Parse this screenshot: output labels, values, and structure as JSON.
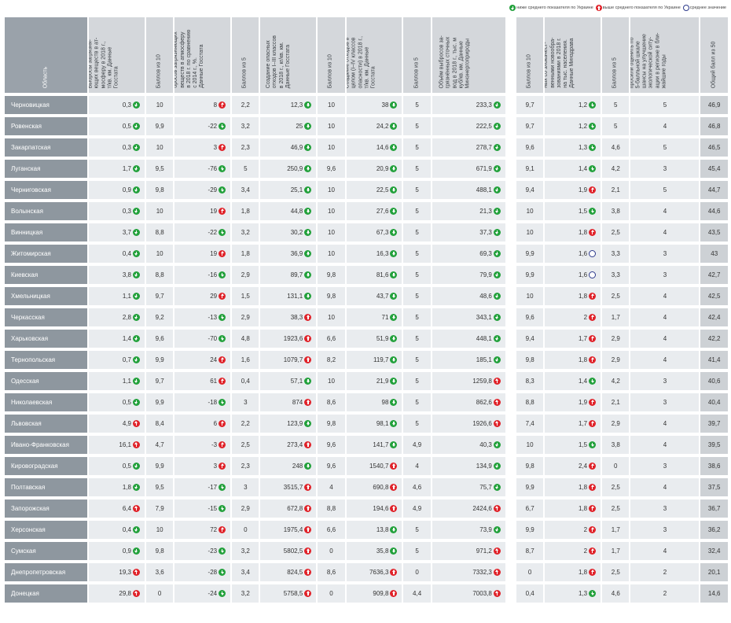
{
  "legend": {
    "below": "ниже среднего показателя по Украине",
    "above": "выше среднего показателя по Украине",
    "average": "среднее значение"
  },
  "headers": {
    "region": "Область",
    "c1": "Выбросы загрязня-\nющих веществ в ат-\nмосферу в 2018 г.,\nт/кв. км. Данные\nГосстата",
    "c2": "Баллов из 10",
    "c3": "Рост/снижение вы-\nбросов загрязняющих\nвеществ в атмосферу\nв 2018 г. по сравнению\nс 2014 г., %.\nДанные Госстата",
    "c4": "Баллов из 5",
    "c5": "Создание опасных\nотходов I–III классов\nв 2018 г., кг/кв. км.\nДанные Госстата",
    "c6": "Баллов из 10",
    "c7": "Создание отходов в\nцелом (I–IV классов\nопасности) в 2018 г.,\nт/кв. км. Данные\nГосстата",
    "c8": "Баллов из 5",
    "c9": "Объём выбросов за-\nгрязнённых сточных\nвод в 2018 г., тыс. м\nкуб/кв. км. Данные\nМинэнергоприроды",
    "c10": "Баллов из 10",
    "c11": "Численность боль-\nных со злокачест-\nвенными новообра-\nзованиями в 2018 г.\nна тыс. населения.\nДанные Минздрава",
    "c12": "Баллов из 5",
    "c13": "Результаты опроса,\nв котором экологов\nпросили оценить по\n5-балльной шкале\nшансы на улучшение\nэкологической ситу-\nации в регионе в бли-\nжайшие годы",
    "c14": "Общий балл из 50"
  },
  "rows": [
    {
      "name": "Черновицкая",
      "v1": "0,3",
      "i1": "dn",
      "s1": "10",
      "v2": "8",
      "i2": "up",
      "s2": "2,2",
      "v3": "12,3",
      "i3": "dn",
      "s3": "10",
      "v4": "38",
      "i4": "dn",
      "s4": "5",
      "v5": "233,3",
      "i5": "dn",
      "s5": "9,7",
      "v6": "1,2",
      "i6": "dn",
      "s6": "5",
      "s7": "5",
      "total": "46,9"
    },
    {
      "name": "Ровенская",
      "v1": "0,5",
      "i1": "dn",
      "s1": "9,9",
      "v2": "-22",
      "i2": "dn",
      "s2": "3,2",
      "v3": "25",
      "i3": "dn",
      "s3": "10",
      "v4": "24,2",
      "i4": "dn",
      "s4": "5",
      "v5": "222,5",
      "i5": "dn",
      "s5": "9,7",
      "v6": "1,2",
      "i6": "dn",
      "s6": "5",
      "s7": "4",
      "total": "46,8"
    },
    {
      "name": "Закарпатская",
      "v1": "0,3",
      "i1": "dn",
      "s1": "10",
      "v2": "3",
      "i2": "up",
      "s2": "2,3",
      "v3": "46,9",
      "i3": "dn",
      "s3": "10",
      "v4": "14,6",
      "i4": "dn",
      "s4": "5",
      "v5": "278,7",
      "i5": "dn",
      "s5": "9,6",
      "v6": "1,3",
      "i6": "dn",
      "s6": "4,6",
      "s7": "5",
      "total": "46,5"
    },
    {
      "name": "Луганская",
      "v1": "1,7",
      "i1": "dn",
      "s1": "9,5",
      "v2": "-76",
      "i2": "dn",
      "s2": "5",
      "v3": "250,9",
      "i3": "dn",
      "s3": "9,6",
      "v4": "20,9",
      "i4": "dn",
      "s4": "5",
      "v5": "671,9",
      "i5": "dn",
      "s5": "9,1",
      "v6": "1,4",
      "i6": "dn",
      "s6": "4,2",
      "s7": "3",
      "total": "45,4"
    },
    {
      "name": "Черниговская",
      "v1": "0,9",
      "i1": "dn",
      "s1": "9,8",
      "v2": "-29",
      "i2": "dn",
      "s2": "3,4",
      "v3": "25,1",
      "i3": "dn",
      "s3": "10",
      "v4": "22,5",
      "i4": "dn",
      "s4": "5",
      "v5": "488,1",
      "i5": "dn",
      "s5": "9,4",
      "v6": "1,9",
      "i6": "up",
      "s6": "2,1",
      "s7": "5",
      "total": "44,7"
    },
    {
      "name": "Волынская",
      "v1": "0,3",
      "i1": "dn",
      "s1": "10",
      "v2": "19",
      "i2": "up",
      "s2": "1,8",
      "v3": "44,8",
      "i3": "dn",
      "s3": "10",
      "v4": "27,6",
      "i4": "dn",
      "s4": "5",
      "v5": "21,3",
      "i5": "dn",
      "s5": "10",
      "v6": "1,5",
      "i6": "dn",
      "s6": "3,8",
      "s7": "4",
      "total": "44,6"
    },
    {
      "name": "Винницкая",
      "v1": "3,7",
      "i1": "dn",
      "s1": "8,8",
      "v2": "-22",
      "i2": "dn",
      "s2": "3,2",
      "v3": "30,2",
      "i3": "dn",
      "s3": "10",
      "v4": "67,3",
      "i4": "dn",
      "s4": "5",
      "v5": "37,3",
      "i5": "dn",
      "s5": "10",
      "v6": "1,8",
      "i6": "up",
      "s6": "2,5",
      "s7": "4",
      "total": "43,5"
    },
    {
      "name": "Житомирская",
      "v1": "0,4",
      "i1": "dn",
      "s1": "10",
      "v2": "19",
      "i2": "up",
      "s2": "1,8",
      "v3": "36,9",
      "i3": "dn",
      "s3": "10",
      "v4": "16,3",
      "i4": "dn",
      "s4": "5",
      "v5": "69,3",
      "i5": "dn",
      "s5": "9,9",
      "v6": "1,6",
      "i6": "av",
      "s6": "3,3",
      "s7": "3",
      "total": "43"
    },
    {
      "name": "Киевская",
      "v1": "3,8",
      "i1": "dn",
      "s1": "8,8",
      "v2": "-16",
      "i2": "dn",
      "s2": "2,9",
      "v3": "89,7",
      "i3": "dn",
      "s3": "9,8",
      "v4": "81,6",
      "i4": "dn",
      "s4": "5",
      "v5": "79,9",
      "i5": "dn",
      "s5": "9,9",
      "v6": "1,6",
      "i6": "av",
      "s6": "3,3",
      "s7": "3",
      "total": "42,7"
    },
    {
      "name": "Хмельницкая",
      "v1": "1,1",
      "i1": "dn",
      "s1": "9,7",
      "v2": "29",
      "i2": "up",
      "s2": "1,5",
      "v3": "131,1",
      "i3": "dn",
      "s3": "9,8",
      "v4": "43,7",
      "i4": "dn",
      "s4": "5",
      "v5": "48,6",
      "i5": "dn",
      "s5": "10",
      "v6": "1,8",
      "i6": "up",
      "s6": "2,5",
      "s7": "4",
      "total": "42,5"
    },
    {
      "name": "Черкасская",
      "v1": "2,8",
      "i1": "dn",
      "s1": "9,2",
      "v2": "-13",
      "i2": "dn",
      "s2": "2,9",
      "v3": "38,3",
      "i3": "up",
      "s3": "10",
      "v4": "71",
      "i4": "dn",
      "s4": "5",
      "v5": "343,1",
      "i5": "dn",
      "s5": "9,6",
      "v6": "2",
      "i6": "up",
      "s6": "1,7",
      "s7": "4",
      "total": "42,4"
    },
    {
      "name": "Харьковская",
      "v1": "1,4",
      "i1": "dn",
      "s1": "9,6",
      "v2": "-70",
      "i2": "dn",
      "s2": "4,8",
      "v3": "1923,6",
      "i3": "up",
      "s3": "6,6",
      "v4": "51,9",
      "i4": "dn",
      "s4": "5",
      "v5": "448,1",
      "i5": "dn",
      "s5": "9,4",
      "v6": "1,7",
      "i6": "up",
      "s6": "2,9",
      "s7": "4",
      "total": "42,2"
    },
    {
      "name": "Тернопольская",
      "v1": "0,7",
      "i1": "dn",
      "s1": "9,9",
      "v2": "24",
      "i2": "up",
      "s2": "1,6",
      "v3": "1079,7",
      "i3": "up",
      "s3": "8,2",
      "v4": "119,7",
      "i4": "dn",
      "s4": "5",
      "v5": "185,1",
      "i5": "dn",
      "s5": "9,8",
      "v6": "1,8",
      "i6": "up",
      "s6": "2,9",
      "s7": "4",
      "total": "41,4"
    },
    {
      "name": "Одесская",
      "v1": "1,1",
      "i1": "dn",
      "s1": "9,7",
      "v2": "61",
      "i2": "up",
      "s2": "0,4",
      "v3": "57,1",
      "i3": "dn",
      "s3": "10",
      "v4": "21,9",
      "i4": "dn",
      "s4": "5",
      "v5": "1259,8",
      "i5": "up",
      "s5": "8,3",
      "v6": "1,4",
      "i6": "dn",
      "s6": "4,2",
      "s7": "3",
      "total": "40,6"
    },
    {
      "name": "Николаевская",
      "v1": "0,5",
      "i1": "dn",
      "s1": "9,9",
      "v2": "-18",
      "i2": "dn",
      "s2": "3",
      "v3": "874",
      "i3": "up",
      "s3": "8,6",
      "v4": "98",
      "i4": "dn",
      "s4": "5",
      "v5": "862,6",
      "i5": "up",
      "s5": "8,8",
      "v6": "1,9",
      "i6": "up",
      "s6": "2,1",
      "s7": "3",
      "total": "40,4"
    },
    {
      "name": "Львовская",
      "v1": "4,9",
      "i1": "up",
      "s1": "8,4",
      "v2": "6",
      "i2": "up",
      "s2": "2,2",
      "v3": "123,9",
      "i3": "dn",
      "s3": "9,8",
      "v4": "98,1",
      "i4": "dn",
      "s4": "5",
      "v5": "1926,6",
      "i5": "up",
      "s5": "7,4",
      "v6": "1,7",
      "i6": "up",
      "s6": "2,9",
      "s7": "4",
      "total": "39,7"
    },
    {
      "name": "Ивано-Франковская",
      "v1": "16,1",
      "i1": "up",
      "s1": "4,7",
      "v2": "-3",
      "i2": "up",
      "s2": "2,5",
      "v3": "273,4",
      "i3": "up",
      "s3": "9,6",
      "v4": "141,7",
      "i4": "dn",
      "s4": "4,9",
      "v5": "40,3",
      "i5": "dn",
      "s5": "10",
      "v6": "1,5",
      "i6": "dn",
      "s6": "3,8",
      "s7": "4",
      "total": "39,5"
    },
    {
      "name": "Кировоградская",
      "v1": "0,5",
      "i1": "dn",
      "s1": "9,9",
      "v2": "3",
      "i2": "up",
      "s2": "2,3",
      "v3": "248",
      "i3": "dn",
      "s3": "9,6",
      "v4": "1540,7",
      "i4": "up",
      "s4": "4",
      "v5": "134,9",
      "i5": "dn",
      "s5": "9,8",
      "v6": "2,4",
      "i6": "up",
      "s6": "0",
      "s7": "3",
      "total": "38,6"
    },
    {
      "name": "Полтавская",
      "v1": "1,8",
      "i1": "dn",
      "s1": "9,5",
      "v2": "-17",
      "i2": "dn",
      "s2": "3",
      "v3": "3515,7",
      "i3": "up",
      "s3": "4",
      "v4": "690,8",
      "i4": "up",
      "s4": "4,6",
      "v5": "75,7",
      "i5": "dn",
      "s5": "9,9",
      "v6": "1,8",
      "i6": "up",
      "s6": "2,5",
      "s7": "4",
      "total": "37,5"
    },
    {
      "name": "Запорожская",
      "v1": "6,4",
      "i1": "up",
      "s1": "7,9",
      "v2": "-15",
      "i2": "dn",
      "s2": "2,9",
      "v3": "672,8",
      "i3": "up",
      "s3": "8,8",
      "v4": "194,6",
      "i4": "up",
      "s4": "4,9",
      "v5": "2424,6",
      "i5": "up",
      "s5": "6,7",
      "v6": "1,8",
      "i6": "up",
      "s6": "2,5",
      "s7": "3",
      "total": "36,7"
    },
    {
      "name": "Херсонская",
      "v1": "0,4",
      "i1": "dn",
      "s1": "10",
      "v2": "72",
      "i2": "up",
      "s2": "0",
      "v3": "1975,4",
      "i3": "up",
      "s3": "6,6",
      "v4": "13,8",
      "i4": "dn",
      "s4": "5",
      "v5": "73,9",
      "i5": "dn",
      "s5": "9,9",
      "v6": "2",
      "i6": "up",
      "s6": "1,7",
      "s7": "3",
      "total": "36,2"
    },
    {
      "name": "Сумская",
      "v1": "0,9",
      "i1": "dn",
      "s1": "9,8",
      "v2": "-23",
      "i2": "dn",
      "s2": "3,2",
      "v3": "5802,5",
      "i3": "up",
      "s3": "0",
      "v4": "35,8",
      "i4": "dn",
      "s4": "5",
      "v5": "971,2",
      "i5": "up",
      "s5": "8,7",
      "v6": "2",
      "i6": "up",
      "s6": "1,7",
      "s7": "4",
      "total": "32,4"
    },
    {
      "name": "Днепропетровская",
      "v1": "19,3",
      "i1": "up",
      "s1": "3,6",
      "v2": "-28",
      "i2": "dn",
      "s2": "3,4",
      "v3": "824,5",
      "i3": "up",
      "s3": "8,6",
      "v4": "7636,3",
      "i4": "up",
      "s4": "0",
      "v5": "7332,3",
      "i5": "up",
      "s5": "0",
      "v6": "1,8",
      "i6": "up",
      "s6": "2,5",
      "s7": "2",
      "total": "20,1"
    },
    {
      "name": "Донецкая",
      "v1": "29,8",
      "i1": "up",
      "s1": "0",
      "v2": "-24",
      "i2": "dn",
      "s2": "3,2",
      "v3": "5758,5",
      "i3": "up",
      "s3": "0",
      "v4": "909,8",
      "i4": "up",
      "s4": "4,4",
      "v5": "7003,8",
      "i5": "up",
      "s5": "0,4",
      "v6": "1,3",
      "i6": "dn",
      "s6": "4,6",
      "s7": "2",
      "total": "14,6"
    }
  ]
}
